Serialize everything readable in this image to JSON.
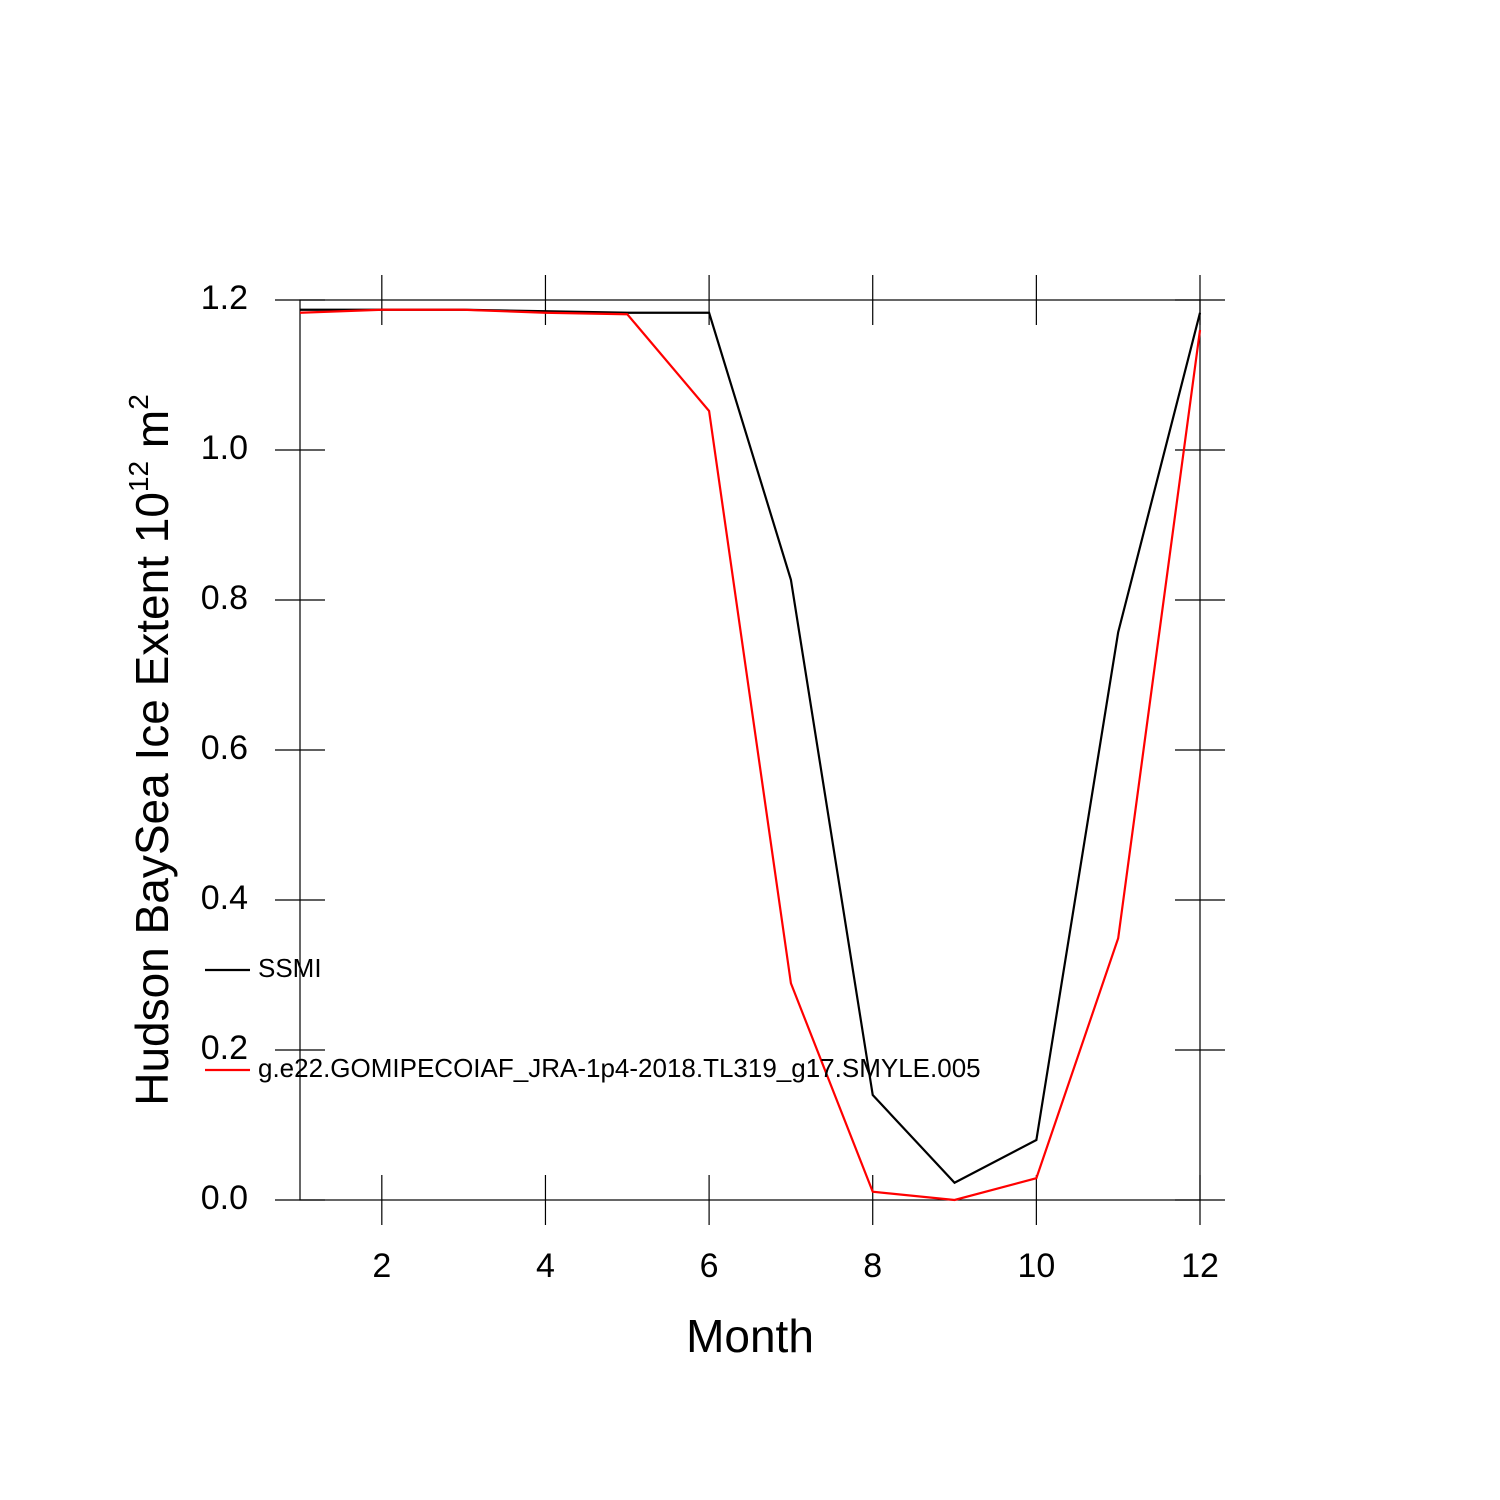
{
  "chart_data": {
    "type": "line",
    "xlabel": "Month",
    "ylabel_parts": [
      "Hudson BaySea Ice Extent 10",
      "12",
      " m",
      "2"
    ],
    "x": [
      1,
      2,
      3,
      4,
      5,
      6,
      7,
      8,
      9,
      10,
      11,
      12
    ],
    "xlim": [
      1,
      12
    ],
    "xticks": [
      2,
      4,
      6,
      8,
      10,
      12
    ],
    "ylim": [
      0,
      1.2
    ],
    "yticks": [
      {
        "value": 0,
        "label": "0.0"
      },
      {
        "value": 0.2,
        "label": "0.2"
      },
      {
        "value": 0.4,
        "label": "0.4"
      },
      {
        "value": 0.6,
        "label": "0.6"
      },
      {
        "value": 0.8,
        "label": "0.8"
      },
      {
        "value": 1.0,
        "label": "1.0"
      },
      {
        "value": 1.2,
        "label": "1.2"
      }
    ],
    "series": [
      {
        "name": "SSMI",
        "color": "#000000",
        "values": [
          1.187,
          1.187,
          1.187,
          1.185,
          1.183,
          1.183,
          0.827,
          0.14,
          0.023,
          0.08,
          0.757,
          1.183
        ]
      },
      {
        "name": "g.e22.GOMIPECOIAF_JRA-1p4-2018.TL319_g17.SMYLE.005",
        "color": "#ff0000",
        "values": [
          1.183,
          1.187,
          1.187,
          1.183,
          1.181,
          1.052,
          0.289,
          0.011,
          0.0,
          0.029,
          0.349,
          1.16
        ]
      }
    ]
  }
}
